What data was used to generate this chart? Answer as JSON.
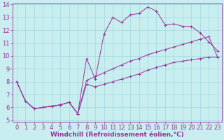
{
  "background_color": "#c8eef0",
  "line_color": "#993399",
  "grid_color": "#a0d8dc",
  "xlabel": "Windchill (Refroidissement éolien,°C)",
  "xlabel_fontsize": 6.5,
  "tick_fontsize": 6.0,
  "ylim": [
    5,
    14
  ],
  "xlim": [
    -0.5,
    23.5
  ],
  "yticks": [
    5,
    6,
    7,
    8,
    9,
    10,
    11,
    12,
    13,
    14
  ],
  "xticks": [
    0,
    1,
    2,
    3,
    4,
    5,
    6,
    7,
    8,
    9,
    10,
    11,
    12,
    13,
    14,
    15,
    16,
    17,
    18,
    19,
    20,
    21,
    22,
    23
  ],
  "line1_x": [
    0,
    1,
    2,
    3,
    4,
    5,
    6,
    7,
    8,
    9,
    10,
    11,
    12,
    13,
    14,
    15,
    16,
    17,
    18,
    19,
    20,
    21,
    22,
    23
  ],
  "line1_y": [
    8.0,
    6.5,
    5.9,
    6.0,
    6.1,
    6.2,
    6.4,
    5.5,
    9.8,
    8.2,
    11.7,
    13.0,
    12.6,
    13.2,
    13.3,
    13.8,
    13.5,
    12.4,
    12.5,
    12.3,
    12.3,
    11.8,
    11.1,
    10.4
  ],
  "line2_x": [
    0,
    1,
    2,
    3,
    4,
    5,
    6,
    7,
    8,
    9,
    10,
    11,
    12,
    13,
    14,
    15,
    16,
    17,
    18,
    19,
    20,
    21,
    22,
    23
  ],
  "line2_y": [
    8.0,
    6.5,
    5.9,
    6.0,
    6.1,
    6.2,
    6.4,
    5.5,
    8.1,
    8.4,
    8.7,
    9.0,
    9.3,
    9.6,
    9.8,
    10.1,
    10.3,
    10.5,
    10.7,
    10.9,
    11.1,
    11.3,
    11.5,
    9.9
  ],
  "line3_x": [
    0,
    1,
    2,
    3,
    4,
    5,
    6,
    7,
    8,
    9,
    10,
    11,
    12,
    13,
    14,
    15,
    16,
    17,
    18,
    19,
    20,
    21,
    22,
    23
  ],
  "line3_y": [
    8.0,
    6.5,
    5.9,
    6.0,
    6.1,
    6.2,
    6.4,
    5.5,
    7.8,
    7.6,
    7.8,
    8.0,
    8.2,
    8.4,
    8.6,
    8.9,
    9.1,
    9.3,
    9.5,
    9.6,
    9.7,
    9.8,
    9.9,
    9.9
  ]
}
